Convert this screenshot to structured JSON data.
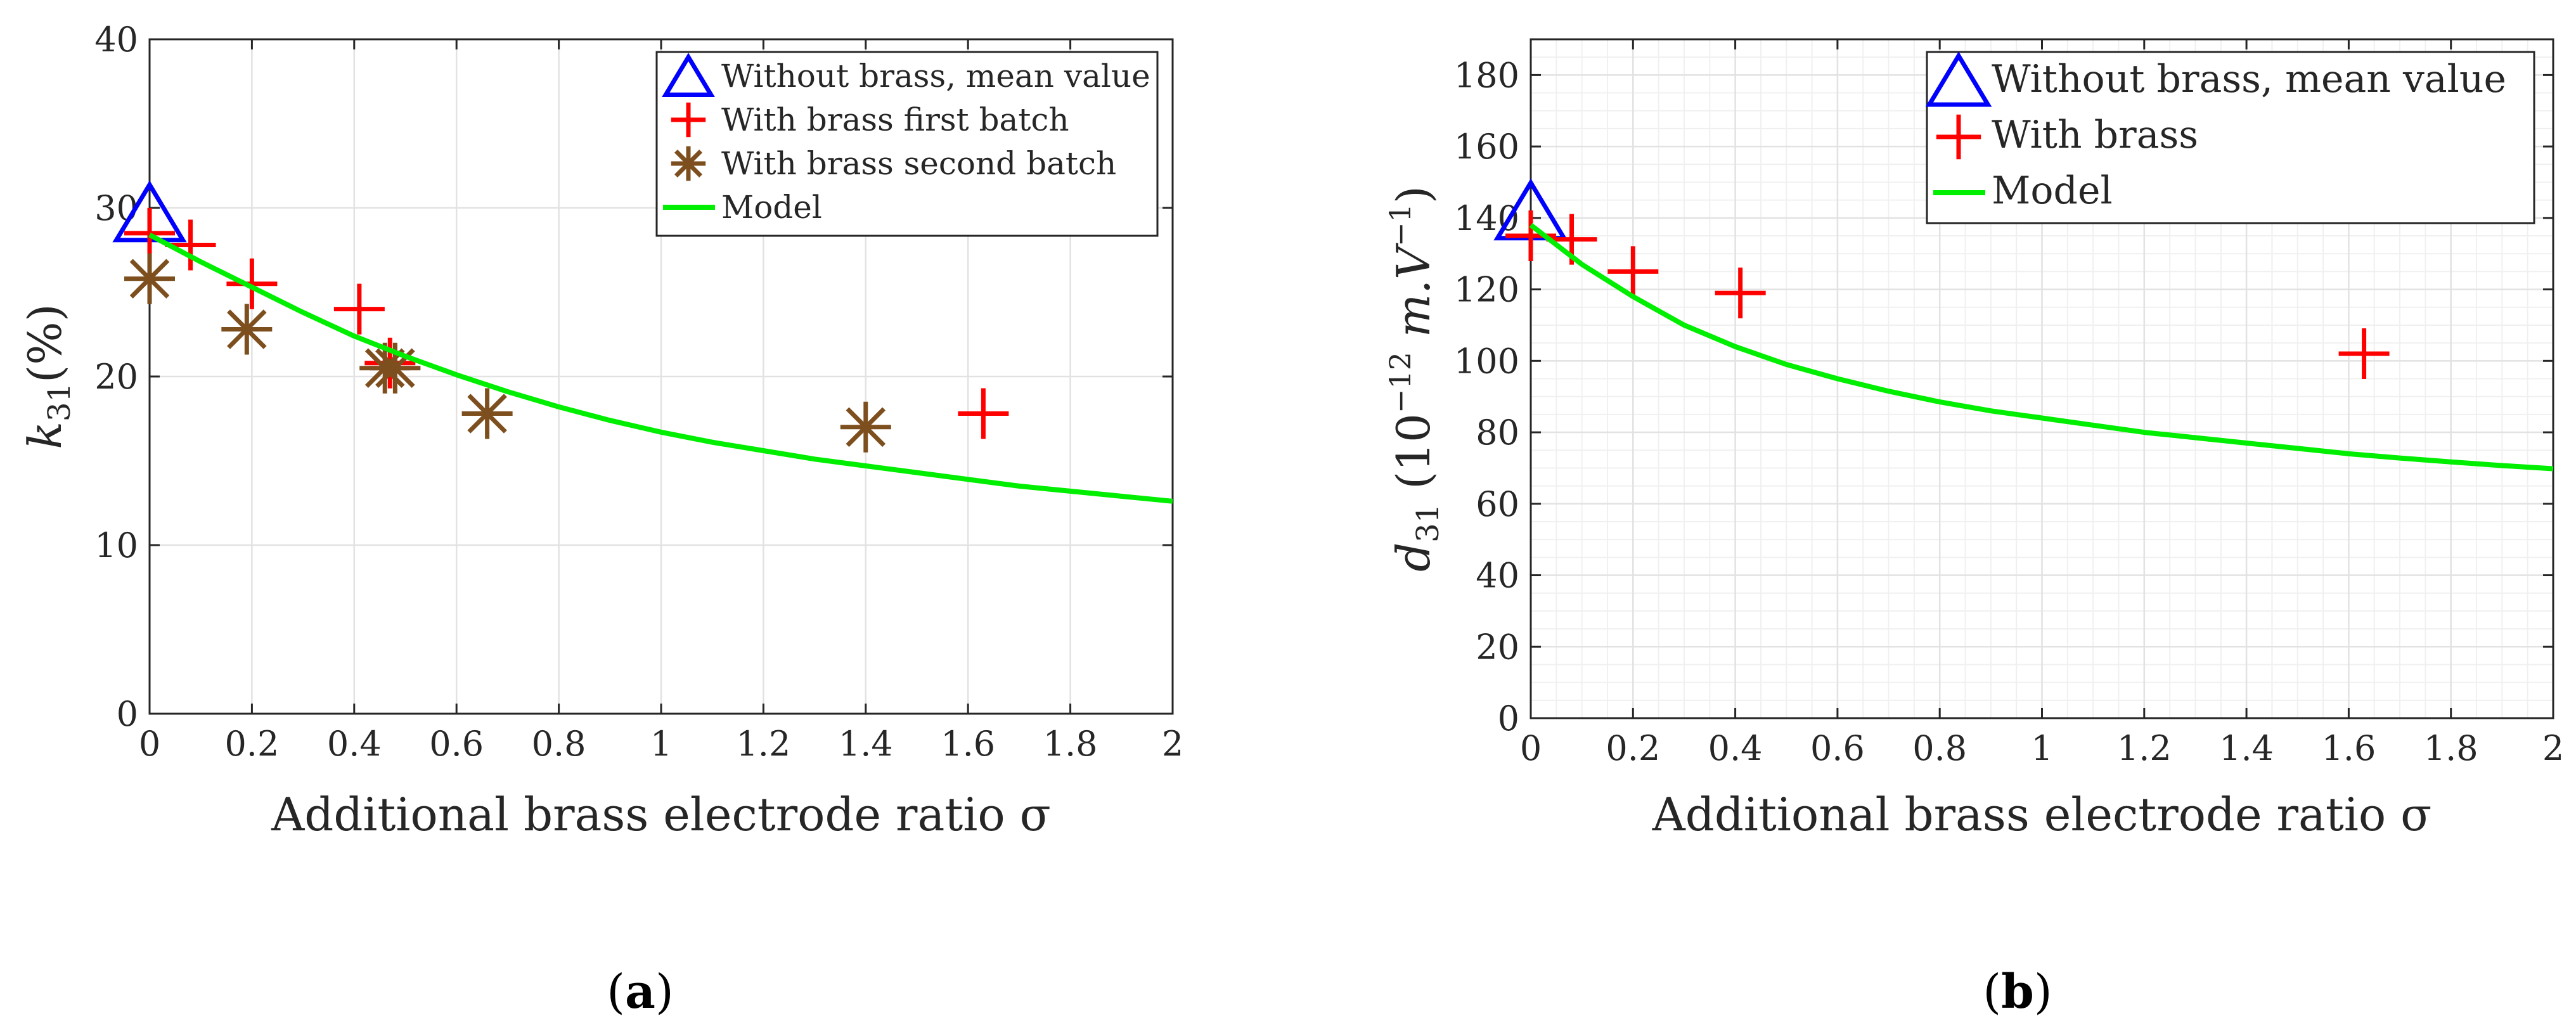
{
  "chart_data": [
    {
      "type": "scatter",
      "panel_label": "(a)",
      "panel_letter": "a",
      "xlabel": "Additional brass electrode ratio σ",
      "ylabel": "k31(%)",
      "ylabel_main": "k",
      "ylabel_sub": "31",
      "ylabel_tail": "(%)",
      "xlim": [
        0,
        2
      ],
      "ylim": [
        0,
        40
      ],
      "xticks": [
        0,
        0.2,
        0.4,
        0.6,
        0.8,
        1,
        1.2,
        1.4,
        1.6,
        1.8,
        2
      ],
      "xtick_labels": [
        "0",
        "0.2",
        "0.4",
        "0.6",
        "0.8",
        "1",
        "1.2",
        "1.4",
        "1.6",
        "1.8",
        "2"
      ],
      "yticks": [
        0,
        10,
        20,
        30,
        40
      ],
      "ytick_labels": [
        "0",
        "10",
        "20",
        "30",
        "40"
      ],
      "grid": "major",
      "legend_position": "top-right",
      "series": [
        {
          "name": "Without brass, mean value",
          "marker": "triangle",
          "color": "#0000ff",
          "x": [
            0
          ],
          "y": [
            29.5
          ]
        },
        {
          "name": "With brass first batch",
          "marker": "plus",
          "color": "#ff0000",
          "x": [
            0,
            0.08,
            0.2,
            0.41,
            0.47,
            1.63
          ],
          "y": [
            28.5,
            27.8,
            25.5,
            24.0,
            20.8,
            17.8
          ]
        },
        {
          "name": "With brass second batch",
          "marker": "asterisk",
          "color": "#7e4f1e",
          "x": [
            0,
            0.19,
            0.46,
            0.48,
            0.66,
            1.4
          ],
          "y": [
            25.8,
            22.8,
            20.5,
            20.5,
            17.8,
            17.0
          ]
        },
        {
          "name": "Model",
          "marker": "line",
          "color": "#00ee00",
          "x": [
            0,
            0.1,
            0.2,
            0.3,
            0.4,
            0.5,
            0.6,
            0.7,
            0.8,
            0.9,
            1.0,
            1.1,
            1.2,
            1.3,
            1.4,
            1.5,
            1.6,
            1.7,
            1.8,
            1.9,
            2.0
          ],
          "y": [
            28.4,
            26.8,
            25.3,
            23.8,
            22.4,
            21.2,
            20.1,
            19.1,
            18.2,
            17.4,
            16.7,
            16.1,
            15.6,
            15.1,
            14.7,
            14.3,
            13.9,
            13.5,
            13.2,
            12.9,
            12.6
          ]
        }
      ]
    },
    {
      "type": "scatter",
      "panel_label": "(b)",
      "panel_letter": "b",
      "xlabel": "Additional brass electrode ratio σ",
      "ylabel": "d31 (10−12 m.V−1)",
      "ylabel_main": "d",
      "ylabel_sub": "31",
      "ylabel_tail": " (10",
      "ylabel_exp1": "−12",
      "ylabel_mid": " m.V",
      "ylabel_exp2": "−1",
      "ylabel_close": ")",
      "xlim": [
        0,
        2
      ],
      "ylim": [
        0,
        190
      ],
      "xticks": [
        0,
        0.2,
        0.4,
        0.6,
        0.8,
        1,
        1.2,
        1.4,
        1.6,
        1.8,
        2
      ],
      "xtick_labels": [
        "0",
        "0.2",
        "0.4",
        "0.6",
        "0.8",
        "1",
        "1.2",
        "1.4",
        "1.6",
        "1.8",
        "2"
      ],
      "yticks": [
        0,
        20,
        40,
        60,
        80,
        100,
        120,
        140,
        160,
        180
      ],
      "ytick_labels": [
        "0",
        "20",
        "40",
        "60",
        "80",
        "100",
        "120",
        "140",
        "160",
        "180"
      ],
      "grid": "major+minor",
      "legend_position": "top-right",
      "series": [
        {
          "name": "Without brass, mean value",
          "marker": "triangle",
          "color": "#0000ff",
          "x": [
            0
          ],
          "y": [
            141
          ]
        },
        {
          "name": "With brass",
          "marker": "plus",
          "color": "#ff0000",
          "x": [
            0,
            0.08,
            0.2,
            0.41,
            1.63
          ],
          "y": [
            135,
            134,
            125,
            119,
            102
          ]
        },
        {
          "name": "Model",
          "marker": "line",
          "color": "#00ee00",
          "x": [
            0,
            0.1,
            0.2,
            0.3,
            0.4,
            0.5,
            0.6,
            0.7,
            0.8,
            0.9,
            1.0,
            1.1,
            1.2,
            1.3,
            1.4,
            1.5,
            1.6,
            1.7,
            1.8,
            1.9,
            2.0
          ],
          "y": [
            138,
            127,
            118,
            110,
            104,
            99,
            95,
            91.5,
            88.5,
            86,
            84,
            82,
            80,
            78.5,
            77,
            75.5,
            74,
            72.8,
            71.7,
            70.7,
            69.8
          ]
        }
      ]
    }
  ]
}
